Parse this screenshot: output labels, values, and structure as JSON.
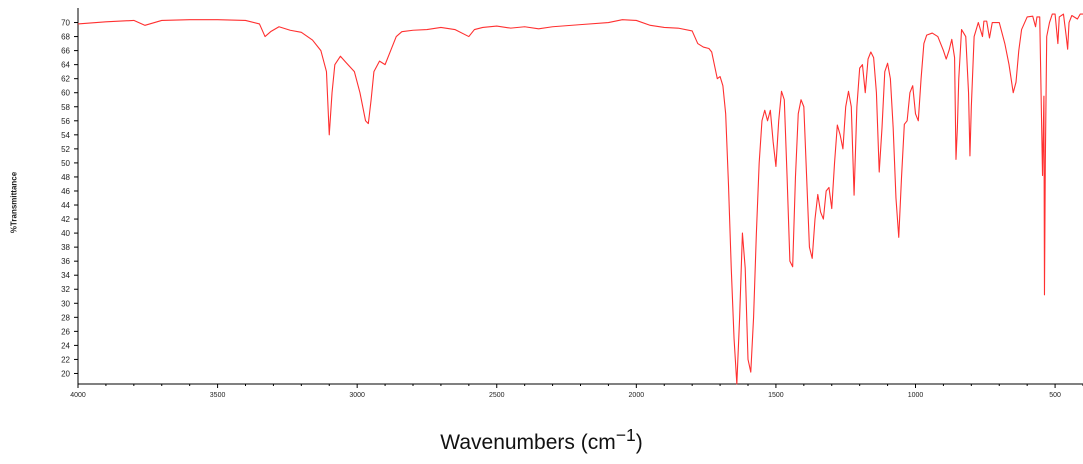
{
  "chart_data": {
    "type": "line",
    "ylabel": "%Transmittance",
    "xlabel_main": "Wavenumbers (cm",
    "xlabel_sup": "−1",
    "xlabel_close": ")",
    "xlim": [
      4000,
      400
    ],
    "ylim": [
      18.5,
      71.5
    ],
    "x_reversed": true,
    "grid": false,
    "color": "#ff3030",
    "x_ticks": [
      4000,
      3500,
      3000,
      2500,
      2000,
      1500,
      1000,
      500
    ],
    "x_tick_labels": [
      "4000",
      "3500",
      "3000",
      "2500",
      "2000",
      "1500",
      "1000",
      "500"
    ],
    "y_ticks": [
      20,
      22,
      24,
      26,
      28,
      30,
      32,
      34,
      36,
      38,
      40,
      42,
      44,
      46,
      48,
      50,
      52,
      54,
      56,
      58,
      60,
      62,
      64,
      66,
      68,
      70
    ],
    "y_tick_labels": [
      "20",
      "22",
      "24",
      "26",
      "28",
      "30",
      "32",
      "34",
      "36",
      "38",
      "40",
      "42",
      "44",
      "46",
      "48",
      "50",
      "52",
      "54",
      "56",
      "58",
      "60",
      "62",
      "64",
      "66",
      "68",
      "70"
    ],
    "series": [
      {
        "points": [
          [
            4000,
            69.8
          ],
          [
            3900,
            70.1
          ],
          [
            3800,
            70.3
          ],
          [
            3760,
            69.6
          ],
          [
            3700,
            70.3
          ],
          [
            3600,
            70.4
          ],
          [
            3500,
            70.4
          ],
          [
            3400,
            70.3
          ],
          [
            3350,
            69.8
          ],
          [
            3330,
            68.0
          ],
          [
            3310,
            68.7
          ],
          [
            3280,
            69.4
          ],
          [
            3240,
            68.9
          ],
          [
            3200,
            68.6
          ],
          [
            3160,
            67.5
          ],
          [
            3130,
            66.0
          ],
          [
            3110,
            63.0
          ],
          [
            3100,
            54.0
          ],
          [
            3090,
            60.0
          ],
          [
            3080,
            64.0
          ],
          [
            3060,
            65.2
          ],
          [
            3040,
            64.3
          ],
          [
            3010,
            63.0
          ],
          [
            2990,
            60.0
          ],
          [
            2970,
            56.0
          ],
          [
            2960,
            55.6
          ],
          [
            2950,
            59.0
          ],
          [
            2940,
            63.0
          ],
          [
            2920,
            64.5
          ],
          [
            2900,
            64.0
          ],
          [
            2880,
            66.0
          ],
          [
            2860,
            68.0
          ],
          [
            2840,
            68.7
          ],
          [
            2800,
            68.9
          ],
          [
            2750,
            69.0
          ],
          [
            2700,
            69.3
          ],
          [
            2650,
            69.0
          ],
          [
            2600,
            68.0
          ],
          [
            2580,
            69.0
          ],
          [
            2550,
            69.3
          ],
          [
            2500,
            69.5
          ],
          [
            2450,
            69.2
          ],
          [
            2400,
            69.4
          ],
          [
            2350,
            69.1
          ],
          [
            2300,
            69.4
          ],
          [
            2200,
            69.7
          ],
          [
            2100,
            70.0
          ],
          [
            2050,
            70.4
          ],
          [
            2000,
            70.3
          ],
          [
            1950,
            69.6
          ],
          [
            1900,
            69.3
          ],
          [
            1850,
            69.2
          ],
          [
            1800,
            68.8
          ],
          [
            1780,
            67.0
          ],
          [
            1760,
            66.5
          ],
          [
            1740,
            66.3
          ],
          [
            1730,
            65.8
          ],
          [
            1710,
            62.0
          ],
          [
            1700,
            62.3
          ],
          [
            1690,
            61.0
          ],
          [
            1680,
            57.0
          ],
          [
            1670,
            47.0
          ],
          [
            1660,
            35.0
          ],
          [
            1650,
            25.0
          ],
          [
            1640,
            18.5
          ],
          [
            1630,
            28.0
          ],
          [
            1620,
            40.0
          ],
          [
            1610,
            35.0
          ],
          [
            1600,
            22.0
          ],
          [
            1590,
            20.2
          ],
          [
            1580,
            28.0
          ],
          [
            1570,
            40.0
          ],
          [
            1560,
            50.0
          ],
          [
            1550,
            56.0
          ],
          [
            1540,
            57.5
          ],
          [
            1530,
            56.0
          ],
          [
            1520,
            57.5
          ],
          [
            1510,
            53.0
          ],
          [
            1500,
            49.5
          ],
          [
            1490,
            56.0
          ],
          [
            1480,
            60.2
          ],
          [
            1470,
            59.0
          ],
          [
            1460,
            48.0
          ],
          [
            1450,
            36.0
          ],
          [
            1440,
            35.2
          ],
          [
            1430,
            48.0
          ],
          [
            1420,
            57.0
          ],
          [
            1410,
            59.0
          ],
          [
            1400,
            58.0
          ],
          [
            1390,
            48.0
          ],
          [
            1380,
            38.0
          ],
          [
            1370,
            36.4
          ],
          [
            1360,
            42.0
          ],
          [
            1350,
            45.5
          ],
          [
            1340,
            43.0
          ],
          [
            1330,
            42.0
          ],
          [
            1320,
            46.0
          ],
          [
            1310,
            46.5
          ],
          [
            1300,
            43.5
          ],
          [
            1290,
            50.0
          ],
          [
            1280,
            55.4
          ],
          [
            1270,
            54.0
          ],
          [
            1260,
            52.0
          ],
          [
            1250,
            58.0
          ],
          [
            1240,
            60.2
          ],
          [
            1230,
            58.0
          ],
          [
            1220,
            45.4
          ],
          [
            1210,
            58.0
          ],
          [
            1200,
            63.5
          ],
          [
            1190,
            64.0
          ],
          [
            1180,
            60.0
          ],
          [
            1170,
            64.8
          ],
          [
            1160,
            65.8
          ],
          [
            1150,
            65.0
          ],
          [
            1140,
            60.0
          ],
          [
            1130,
            48.7
          ],
          [
            1120,
            55.0
          ],
          [
            1110,
            63.0
          ],
          [
            1100,
            64.2
          ],
          [
            1090,
            62.0
          ],
          [
            1080,
            55.0
          ],
          [
            1070,
            45.0
          ],
          [
            1060,
            39.4
          ],
          [
            1050,
            48.0
          ],
          [
            1040,
            55.5
          ],
          [
            1030,
            56.0
          ],
          [
            1020,
            60.0
          ],
          [
            1010,
            61.0
          ],
          [
            1000,
            57.0
          ],
          [
            990,
            56.0
          ],
          [
            980,
            62.0
          ],
          [
            970,
            67.0
          ],
          [
            960,
            68.2
          ],
          [
            940,
            68.5
          ],
          [
            920,
            68.0
          ],
          [
            900,
            66.0
          ],
          [
            890,
            64.8
          ],
          [
            880,
            66.0
          ],
          [
            870,
            67.6
          ],
          [
            860,
            65.0
          ],
          [
            855,
            50.5
          ],
          [
            850,
            55.0
          ],
          [
            845,
            62.0
          ],
          [
            835,
            69.0
          ],
          [
            820,
            68.0
          ],
          [
            810,
            60.0
          ],
          [
            805,
            51.0
          ],
          [
            800,
            58.0
          ],
          [
            790,
            68.0
          ],
          [
            775,
            70.0
          ],
          [
            760,
            68.0
          ],
          [
            755,
            70.2
          ],
          [
            745,
            70.2
          ],
          [
            735,
            67.8
          ],
          [
            725,
            70.0
          ],
          [
            700,
            70.0
          ],
          [
            680,
            67.0
          ],
          [
            665,
            64.0
          ],
          [
            650,
            60.0
          ],
          [
            640,
            61.5
          ],
          [
            630,
            66.0
          ],
          [
            620,
            69.0
          ],
          [
            600,
            70.8
          ],
          [
            580,
            70.9
          ],
          [
            570,
            69.4
          ],
          [
            565,
            70.8
          ],
          [
            555,
            70.8
          ],
          [
            545,
            48.2
          ],
          [
            540,
            59.5
          ],
          [
            538,
            31.2
          ],
          [
            535,
            50.0
          ],
          [
            530,
            68.0
          ],
          [
            520,
            70.0
          ],
          [
            510,
            71.2
          ],
          [
            500,
            71.2
          ],
          [
            490,
            67.0
          ],
          [
            485,
            70.8
          ],
          [
            470,
            71.2
          ],
          [
            460,
            68.0
          ],
          [
            455,
            66.2
          ],
          [
            450,
            70.0
          ],
          [
            440,
            71.0
          ],
          [
            420,
            70.5
          ],
          [
            410,
            71.2
          ],
          [
            400,
            71.2
          ]
        ]
      }
    ]
  }
}
